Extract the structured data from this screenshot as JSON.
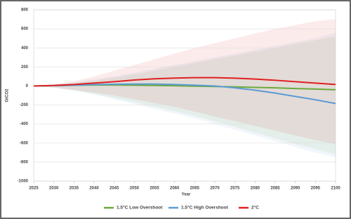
{
  "chart_data": {
    "type": "line",
    "x_label": "Year",
    "y_label": "GtCO2",
    "x": [
      2025,
      2030,
      2035,
      2040,
      2045,
      2050,
      2055,
      2060,
      2065,
      2070,
      2075,
      2080,
      2085,
      2090,
      2095,
      2100
    ],
    "xlim": [
      2025,
      2100
    ],
    "xticks": [
      2025,
      2030,
      2035,
      2040,
      2045,
      2050,
      2055,
      2060,
      2065,
      2070,
      2075,
      2080,
      2085,
      2090,
      2095,
      2100
    ],
    "ylim": [
      -1000,
      800
    ],
    "yticks": [
      -1000,
      -800,
      -600,
      -400,
      -200,
      0,
      200,
      400,
      600,
      800
    ],
    "grid": true,
    "legend": "bottom",
    "series": [
      {
        "name": "1.5°C Low Overshoot",
        "color": "#6aaa3a",
        "values": [
          0,
          3,
          7,
          10,
          10,
          8,
          5,
          2,
          -2,
          -6,
          -10,
          -15,
          -20,
          -27,
          -33,
          -40
        ],
        "upper": [
          0,
          12,
          30,
          55,
          85,
          120,
          160,
          200,
          240,
          280,
          320,
          360,
          400,
          440,
          480,
          520
        ],
        "lower": [
          0,
          -18,
          -45,
          -80,
          -125,
          -170,
          -215,
          -265,
          -315,
          -370,
          -430,
          -490,
          -550,
          -610,
          -660,
          -720
        ]
      },
      {
        "name": "1.5°C High Overshoot",
        "color": "#5b9bd5",
        "values": [
          0,
          3,
          8,
          14,
          18,
          20,
          20,
          15,
          8,
          0,
          -20,
          -45,
          -75,
          -110,
          -145,
          -185
        ],
        "upper": [
          0,
          15,
          40,
          70,
          100,
          140,
          180,
          220,
          260,
          300,
          340,
          380,
          420,
          460,
          500,
          560
        ],
        "lower": [
          0,
          -20,
          -50,
          -90,
          -140,
          -190,
          -240,
          -290,
          -340,
          -400,
          -460,
          -520,
          -580,
          -640,
          -700,
          -750
        ]
      },
      {
        "name": "2°C",
        "color": "#e02020",
        "values": [
          0,
          5,
          15,
          30,
          45,
          62,
          75,
          83,
          87,
          87,
          82,
          72,
          60,
          45,
          30,
          15
        ],
        "upper": [
          0,
          20,
          50,
          100,
          160,
          220,
          280,
          340,
          400,
          450,
          500,
          550,
          600,
          640,
          680,
          700
        ],
        "lower": [
          0,
          -15,
          -40,
          -70,
          -100,
          -140,
          -180,
          -220,
          -270,
          -320,
          -370,
          -420,
          -470,
          -520,
          -570,
          -610
        ]
      }
    ]
  }
}
